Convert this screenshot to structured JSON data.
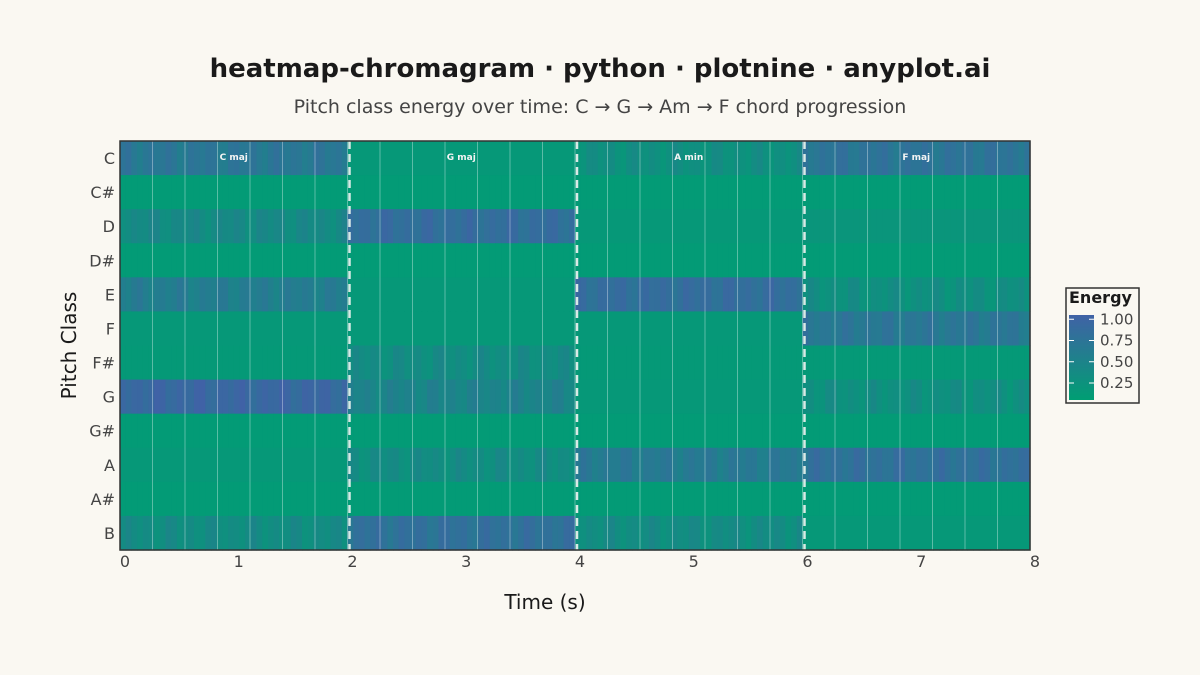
{
  "header": {
    "title": "heatmap-chromagram · python · plotnine · anyplot.ai",
    "subtitle": "Pitch class energy over time: C → G → Am → F chord progression"
  },
  "colors": {
    "background": "#FAF8F2",
    "low": "#009E73",
    "high": "#4062A6",
    "chord_boundary": "#D9EAE6",
    "frame_grid": "#FFFFFF"
  },
  "chart_data": {
    "type": "heatmap",
    "title": "heatmap-chromagram · python · plotnine · anyplot.ai",
    "subtitle": "Pitch class energy over time: C → G → Am → F chord progression",
    "xlabel": "Time (s)",
    "ylabel": "Pitch Class",
    "xlim": [
      0,
      8
    ],
    "x_ticks": [
      0,
      1,
      2,
      3,
      4,
      5,
      6,
      7,
      8
    ],
    "pitch_classes": [
      "C",
      "C#",
      "D",
      "D#",
      "E",
      "F",
      "F#",
      "G",
      "G#",
      "A",
      "A#",
      "B"
    ],
    "chords": [
      {
        "label": "C maj",
        "start": 0,
        "end": 2
      },
      {
        "label": "G maj",
        "start": 2,
        "end": 4
      },
      {
        "label": "A min",
        "start": 4,
        "end": 6
      },
      {
        "label": "F maj",
        "start": 6,
        "end": 8
      }
    ],
    "energy_by_segment": {
      "C": [
        0.65,
        0.1,
        0.25,
        0.7
      ],
      "C#": [
        0.05,
        0.05,
        0.05,
        0.05
      ],
      "D": [
        0.35,
        0.8,
        0.1,
        0.15
      ],
      "D#": [
        0.05,
        0.05,
        0.05,
        0.05
      ],
      "E": [
        0.55,
        0.1,
        0.8,
        0.25
      ],
      "F": [
        0.1,
        0.1,
        0.1,
        0.65
      ],
      "F#": [
        0.08,
        0.3,
        0.08,
        0.08
      ],
      "G": [
        0.9,
        0.45,
        0.1,
        0.25
      ],
      "G#": [
        0.05,
        0.05,
        0.05,
        0.05
      ],
      "A": [
        0.1,
        0.3,
        0.6,
        0.75
      ],
      "A#": [
        0.05,
        0.05,
        0.05,
        0.05
      ],
      "B": [
        0.3,
        0.75,
        0.3,
        0.1
      ]
    },
    "legend": {
      "title": "Energy",
      "position": "right",
      "breaks": [
        "1.00",
        "0.75",
        "0.50",
        "0.25"
      ],
      "break_values": [
        1.0,
        0.75,
        0.5,
        0.25
      ]
    },
    "grid": false
  }
}
